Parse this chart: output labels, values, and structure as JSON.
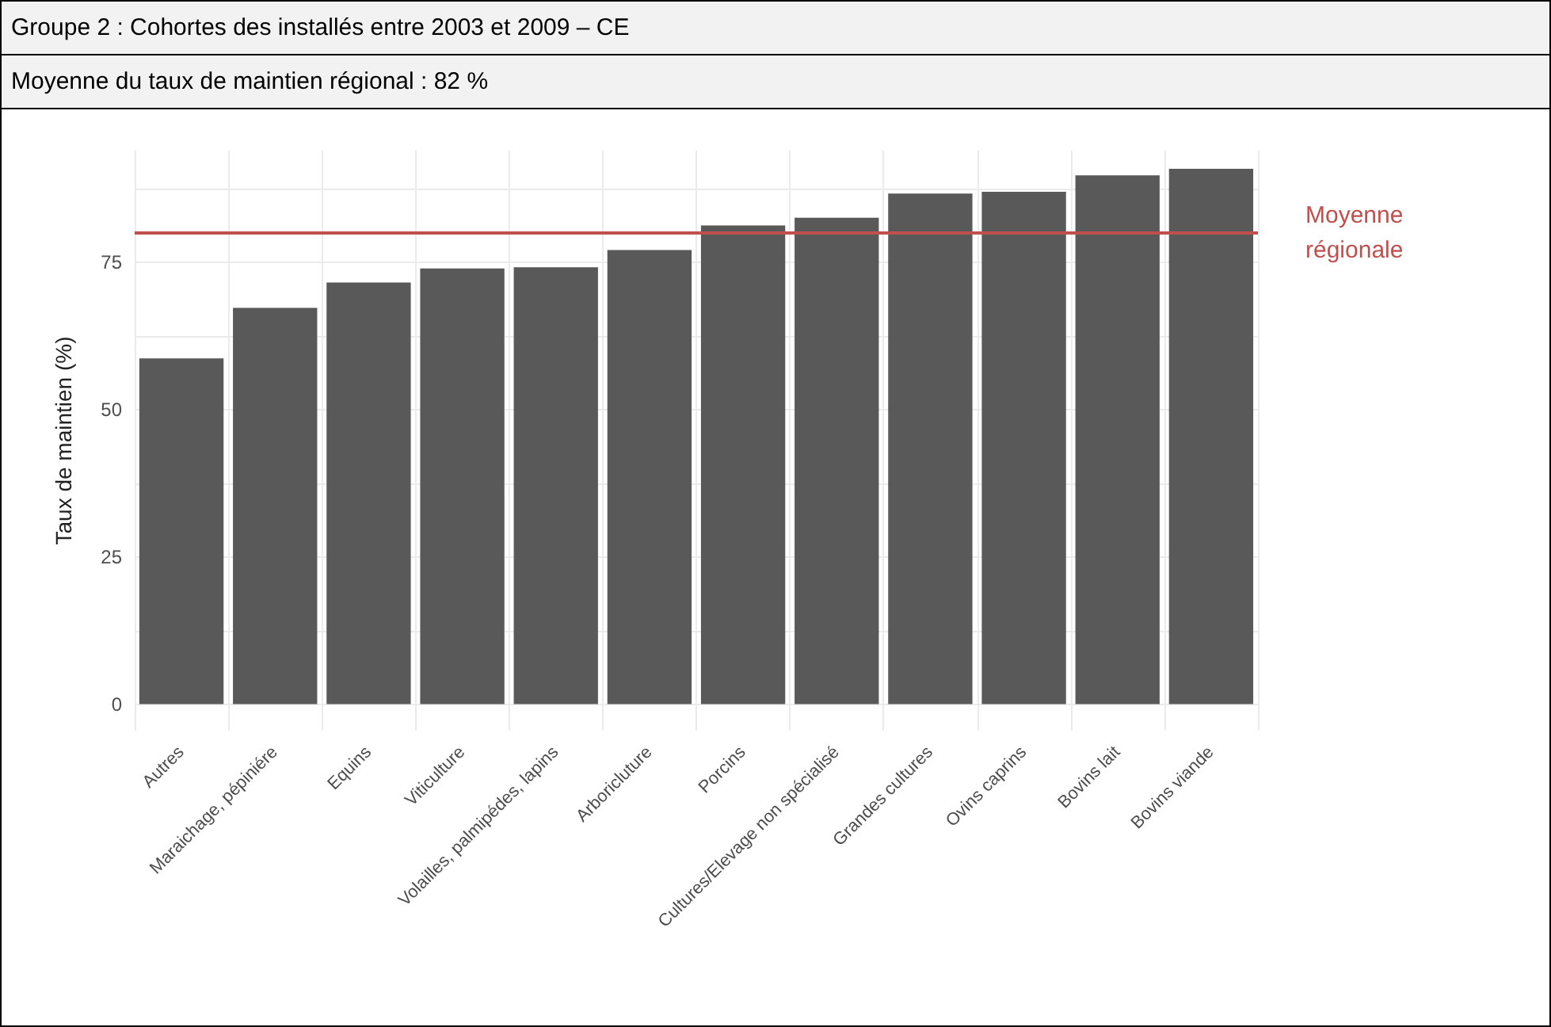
{
  "chart_data": {
    "type": "bar",
    "title": "Groupe 2 : Cohortes des installés entre 2003 et 2009 – CE",
    "subtitle": "Moyenne du taux de maintien régional : 82 %",
    "ylabel": "Taux de maintien (%)",
    "categories": [
      "Autres",
      "Maraichage, pépiniére",
      "Equins",
      "Viticulture",
      "Volailles, palmipédes, lapins",
      "Arboricluture",
      "Porcins",
      "Cultures/Elevage non spécialisé",
      "Grandes cultures",
      "Ovins caprins",
      "Bovins lait",
      "Bovins viande"
    ],
    "values": [
      58.7,
      67.3,
      71.6,
      74.0,
      74.2,
      77.1,
      81.3,
      82.6,
      86.7,
      87.0,
      89.8,
      90.9
    ],
    "color": "#595959",
    "ylim": [
      -4.5,
      94
    ],
    "yticks": [
      0,
      {
        "value": 12.5,
        "label": null
      },
      25,
      {
        "value": 37.5,
        "label": null
      },
      50,
      {
        "value": 62.5,
        "label": null
      },
      75,
      {
        "value": 87.5,
        "label": null
      }
    ],
    "grid": true,
    "ref_lines": [
      {
        "axis": "y",
        "value": 80,
        "label": "Moyenne régionale",
        "color": "#c0504d",
        "line_style": "solid"
      }
    ]
  }
}
